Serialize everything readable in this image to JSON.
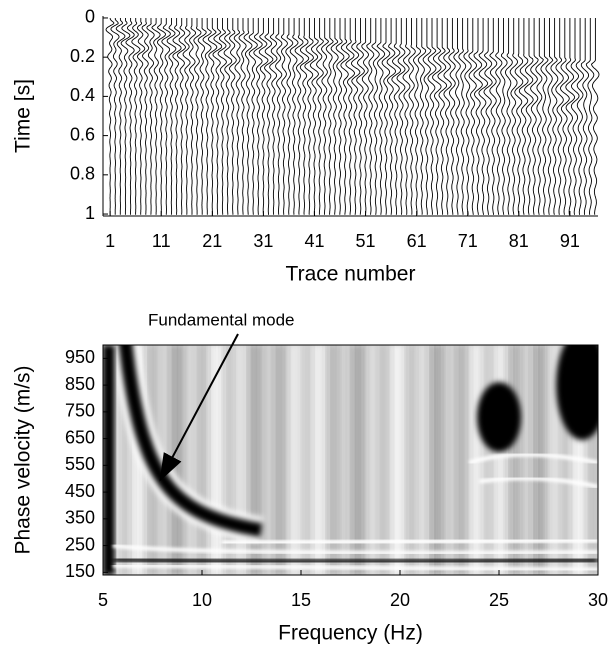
{
  "chart_data": [
    {
      "type": "wiggle",
      "xlabel": "Trace number",
      "ylabel": "Time [s]",
      "xlim": [
        -0.4,
        96.5
      ],
      "ylim": [
        -0.01,
        1.01
      ],
      "y_inverted": true,
      "xticks": [
        1,
        11,
        21,
        31,
        41,
        51,
        61,
        71,
        81,
        91
      ],
      "yticks": [
        0,
        0.2,
        0.4,
        0.6,
        0.8,
        1
      ],
      "color": "#000000"
    },
    {
      "type": "image",
      "xlabel": "Frequency (Hz)",
      "ylabel": "Phase velocity (m/s)",
      "xlim": [
        5,
        30
      ],
      "ylim": [
        140,
        1000
      ],
      "xticks": [
        5,
        10,
        15,
        20,
        25,
        30
      ],
      "yticks": [
        150,
        250,
        350,
        450,
        550,
        650,
        750,
        850,
        950
      ],
      "annotation": {
        "text": "Fundamental mode",
        "x": 7.9,
        "y": 496
      },
      "colormap": [
        "#ffffff",
        "#000000"
      ]
    }
  ]
}
